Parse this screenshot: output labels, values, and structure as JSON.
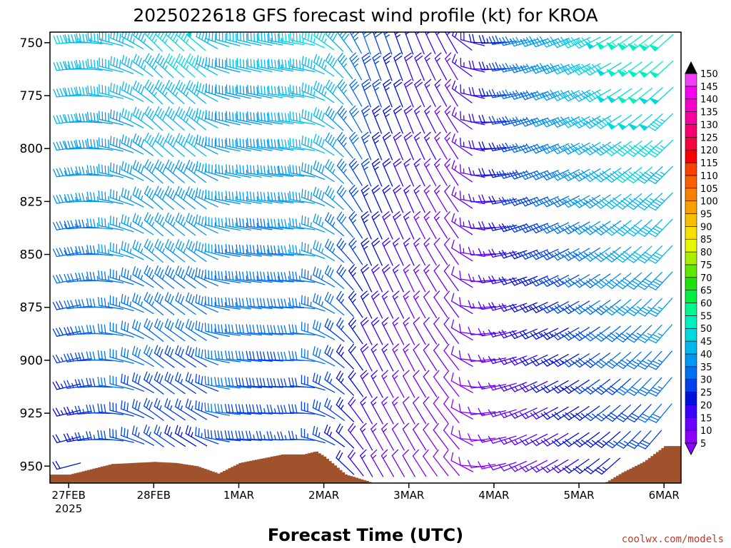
{
  "chart_data": {
    "type": "wind-barb-profile",
    "title": "2025022618 GFS forecast wind profile (kt) for KROA",
    "xlabel": "Forecast Time (UTC)",
    "ylabel": "",
    "ylim": [
      958,
      745
    ],
    "y_ticks": [
      "750",
      "775",
      "800",
      "825",
      "850",
      "875",
      "900",
      "925",
      "950"
    ],
    "x_ticks": [
      {
        "label": "27FEB",
        "sublabel": "2025",
        "day": 0
      },
      {
        "label": "28FEB",
        "sublabel": "",
        "day": 1
      },
      {
        "label": "1MAR",
        "sublabel": "",
        "day": 2
      },
      {
        "label": "2MAR",
        "sublabel": "",
        "day": 3
      },
      {
        "label": "3MAR",
        "sublabel": "",
        "day": 4
      },
      {
        "label": "4MAR",
        "sublabel": "",
        "day": 5
      },
      {
        "label": "5MAR",
        "sublabel": "",
        "day": 6
      },
      {
        "label": "6MAR",
        "sublabel": "",
        "day": 7
      }
    ],
    "xlim_days": [
      -0.22,
      7.2
    ],
    "barb_levels": [
      750,
      762.5,
      775,
      787.5,
      800,
      812.5,
      825,
      837.5,
      850,
      862.5,
      875,
      887.5,
      900,
      912.5,
      925,
      937.5,
      950
    ],
    "barb_time_step_days": 0.125,
    "surface_pressure": [
      {
        "day": -0.22,
        "pressure": 954.0
      },
      {
        "day": 0.0,
        "pressure": 954.0
      },
      {
        "day": 0.25,
        "pressure": 951.5
      },
      {
        "day": 0.5,
        "pressure": 949.0
      },
      {
        "day": 1.0,
        "pressure": 948.0
      },
      {
        "day": 1.25,
        "pressure": 948.5
      },
      {
        "day": 1.5,
        "pressure": 950.0
      },
      {
        "day": 1.75,
        "pressure": 953.5
      },
      {
        "day": 2.0,
        "pressure": 948.5
      },
      {
        "day": 2.25,
        "pressure": 946.5
      },
      {
        "day": 2.5,
        "pressure": 944.5
      },
      {
        "day": 2.75,
        "pressure": 944.5
      },
      {
        "day": 2.9,
        "pressure": 943.0
      },
      {
        "day": 3.0,
        "pressure": 945.5
      },
      {
        "day": 3.25,
        "pressure": 954.0
      },
      {
        "day": 3.5,
        "pressure": 957.0
      },
      {
        "day": 3.75,
        "pressure": 961.0
      },
      {
        "day": 4.0,
        "pressure": 959.0
      },
      {
        "day": 4.25,
        "pressure": 962.0
      },
      {
        "day": 4.5,
        "pressure": 964.0
      },
      {
        "day": 4.75,
        "pressure": 966.0
      },
      {
        "day": 5.0,
        "pressure": 964.5
      },
      {
        "day": 5.25,
        "pressure": 965.5
      },
      {
        "day": 5.5,
        "pressure": 964.5
      },
      {
        "day": 6.0,
        "pressure": 963.0
      },
      {
        "day": 6.25,
        "pressure": 959.0
      },
      {
        "day": 6.5,
        "pressure": 953.0
      },
      {
        "day": 6.75,
        "pressure": 948.0
      },
      {
        "day": 6.9,
        "pressure": 943.5
      },
      {
        "day": 7.0,
        "pressure": 940.5
      },
      {
        "day": 7.2,
        "pressure": 940.5
      }
    ],
    "wind_phases": [
      {
        "day": 0.0,
        "direction_deg": 255,
        "speed_top_kt": 45,
        "speed_bottom_kt": 20
      },
      {
        "day": 0.5,
        "direction_deg": 275,
        "speed_top_kt": 42,
        "speed_bottom_kt": 28
      },
      {
        "day": 1.0,
        "direction_deg": 305,
        "speed_top_kt": 45,
        "speed_bottom_kt": 25
      },
      {
        "day": 1.5,
        "direction_deg": 300,
        "speed_top_kt": 48,
        "speed_bottom_kt": 22
      },
      {
        "day": 1.8,
        "direction_deg": 275,
        "speed_top_kt": 40,
        "speed_bottom_kt": 30
      },
      {
        "day": 2.3,
        "direction_deg": 272,
        "speed_top_kt": 42,
        "speed_bottom_kt": 25
      },
      {
        "day": 2.7,
        "direction_deg": 268,
        "speed_top_kt": 46,
        "speed_bottom_kt": 25
      },
      {
        "day": 3.05,
        "direction_deg": 300,
        "speed_top_kt": 45,
        "speed_bottom_kt": 25
      },
      {
        "day": 3.5,
        "direction_deg": 330,
        "speed_top_kt": 30,
        "speed_bottom_kt": 15
      },
      {
        "day": 4.0,
        "direction_deg": 330,
        "speed_top_kt": 20,
        "speed_bottom_kt": 10
      },
      {
        "day": 4.5,
        "direction_deg": 320,
        "speed_top_kt": 15,
        "speed_bottom_kt": 8
      },
      {
        "day": 4.8,
        "direction_deg": 265,
        "speed_top_kt": 18,
        "speed_bottom_kt": 8
      },
      {
        "day": 5.3,
        "direction_deg": 245,
        "speed_top_kt": 35,
        "speed_bottom_kt": 12
      },
      {
        "day": 6.0,
        "direction_deg": 235,
        "speed_top_kt": 45,
        "speed_bottom_kt": 20
      },
      {
        "day": 6.6,
        "direction_deg": 225,
        "speed_top_kt": 55,
        "speed_bottom_kt": 25
      },
      {
        "day": 7.2,
        "direction_deg": 215,
        "speed_top_kt": 50,
        "speed_bottom_kt": 30
      }
    ],
    "colorbar": {
      "labels": [
        "5",
        "10",
        "15",
        "20",
        "25",
        "30",
        "35",
        "40",
        "45",
        "50",
        "55",
        "60",
        "65",
        "70",
        "75",
        "80",
        "85",
        "90",
        "95",
        "100",
        "105",
        "110",
        "115",
        "120",
        "125",
        "130",
        "135",
        "140",
        "145",
        "150"
      ],
      "colors": [
        "#8b00ff",
        "#6a00ff",
        "#3c00ff",
        "#0010d8",
        "#0040e8",
        "#0070f0",
        "#0098f0",
        "#00b8f0",
        "#00d8e0",
        "#00f0c0",
        "#00f890",
        "#00f040",
        "#20e010",
        "#60e800",
        "#a8f000",
        "#e8f800",
        "#f8e000",
        "#f8c000",
        "#f8a000",
        "#f88000",
        "#f86000",
        "#f84000",
        "#f80000",
        "#f80040",
        "#f80070",
        "#f800a0",
        "#f800c8",
        "#f800f0",
        "#f040f8"
      ],
      "min": 0,
      "max": 150
    },
    "surface_fill_color": "#a0522d",
    "grid": false
  },
  "footer": {
    "credit": "coolwx.com/models"
  }
}
